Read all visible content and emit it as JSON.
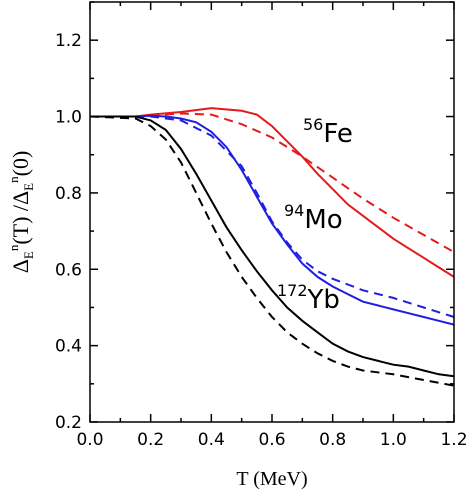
{
  "chart_data": {
    "type": "line",
    "title": "",
    "xlabel": "T  (MeV)",
    "ylabel": {
      "delta": "Δ",
      "sub": "E",
      "sup": "n",
      "num_arg": "(T) /",
      "den_arg": "(0)"
    },
    "xlim": [
      0.0,
      1.2
    ],
    "ylim": [
      0.2,
      1.3
    ],
    "x_ticks": [
      "0.0",
      "0.2",
      "0.4",
      "0.6",
      "0.8",
      "1.0",
      "1.2"
    ],
    "y_ticks": [
      "0.2",
      "0.4",
      "0.6",
      "0.8",
      "1.0",
      "1.2"
    ],
    "grid": false,
    "legend": "none",
    "labels": [
      {
        "mass": "56",
        "element": "Fe"
      },
      {
        "mass": "94",
        "element": "Mo"
      },
      {
        "mass": "172",
        "element": "Yb"
      }
    ],
    "series": [
      {
        "color": "#e41a1c",
        "style": "solid",
        "points": [
          [
            0.0,
            1.0
          ],
          [
            0.15,
            1.0
          ],
          [
            0.2,
            1.005
          ],
          [
            0.3,
            1.012
          ],
          [
            0.4,
            1.022
          ],
          [
            0.5,
            1.015
          ],
          [
            0.55,
            1.005
          ],
          [
            0.6,
            0.975
          ],
          [
            0.65,
            0.935
          ],
          [
            0.7,
            0.895
          ],
          [
            0.75,
            0.85
          ],
          [
            0.8,
            0.81
          ],
          [
            0.85,
            0.77
          ],
          [
            0.9,
            0.74
          ],
          [
            0.95,
            0.71
          ],
          [
            1.0,
            0.68
          ],
          [
            1.05,
            0.655
          ],
          [
            1.1,
            0.63
          ],
          [
            1.15,
            0.605
          ],
          [
            1.2,
            0.58
          ]
        ]
      },
      {
        "color": "#e41a1c",
        "style": "dashed",
        "points": [
          [
            0.0,
            1.0
          ],
          [
            0.15,
            1.0
          ],
          [
            0.2,
            1.003
          ],
          [
            0.3,
            1.008
          ],
          [
            0.4,
            1.005
          ],
          [
            0.5,
            0.98
          ],
          [
            0.6,
            0.945
          ],
          [
            0.7,
            0.895
          ],
          [
            0.8,
            0.84
          ],
          [
            0.9,
            0.785
          ],
          [
            1.0,
            0.735
          ],
          [
            1.1,
            0.69
          ],
          [
            1.2,
            0.645
          ]
        ]
      },
      {
        "color": "#1f1fe0",
        "style": "solid",
        "points": [
          [
            0.0,
            1.0
          ],
          [
            0.15,
            1.0
          ],
          [
            0.2,
            1.002
          ],
          [
            0.25,
            1.0
          ],
          [
            0.3,
            0.995
          ],
          [
            0.35,
            0.985
          ],
          [
            0.4,
            0.96
          ],
          [
            0.45,
            0.92
          ],
          [
            0.5,
            0.86
          ],
          [
            0.55,
            0.79
          ],
          [
            0.6,
            0.72
          ],
          [
            0.65,
            0.665
          ],
          [
            0.7,
            0.615
          ],
          [
            0.75,
            0.58
          ],
          [
            0.8,
            0.555
          ],
          [
            0.85,
            0.535
          ],
          [
            0.9,
            0.515
          ],
          [
            0.95,
            0.505
          ],
          [
            1.0,
            0.495
          ],
          [
            1.05,
            0.485
          ],
          [
            1.1,
            0.475
          ],
          [
            1.15,
            0.465
          ],
          [
            1.2,
            0.455
          ]
        ]
      },
      {
        "color": "#1f1fe0",
        "style": "dashed",
        "points": [
          [
            0.0,
            1.0
          ],
          [
            0.15,
            1.0
          ],
          [
            0.2,
            1.0
          ],
          [
            0.3,
            0.99
          ],
          [
            0.4,
            0.95
          ],
          [
            0.5,
            0.87
          ],
          [
            0.55,
            0.8
          ],
          [
            0.6,
            0.725
          ],
          [
            0.65,
            0.67
          ],
          [
            0.7,
            0.625
          ],
          [
            0.75,
            0.595
          ],
          [
            0.8,
            0.575
          ],
          [
            0.85,
            0.56
          ],
          [
            0.9,
            0.545
          ],
          [
            1.0,
            0.525
          ],
          [
            1.1,
            0.5
          ],
          [
            1.2,
            0.475
          ]
        ]
      },
      {
        "color": "#000000",
        "style": "solid",
        "points": [
          [
            0.0,
            1.0
          ],
          [
            0.15,
            1.0
          ],
          [
            0.2,
            0.99
          ],
          [
            0.25,
            0.965
          ],
          [
            0.3,
            0.915
          ],
          [
            0.35,
            0.85
          ],
          [
            0.4,
            0.78
          ],
          [
            0.45,
            0.71
          ],
          [
            0.5,
            0.65
          ],
          [
            0.55,
            0.595
          ],
          [
            0.6,
            0.545
          ],
          [
            0.65,
            0.5
          ],
          [
            0.7,
            0.465
          ],
          [
            0.75,
            0.435
          ],
          [
            0.8,
            0.405
          ],
          [
            0.85,
            0.385
          ],
          [
            0.9,
            0.37
          ],
          [
            0.95,
            0.36
          ],
          [
            1.0,
            0.35
          ],
          [
            1.05,
            0.345
          ],
          [
            1.1,
            0.335
          ],
          [
            1.15,
            0.325
          ],
          [
            1.2,
            0.32
          ]
        ]
      },
      {
        "color": "#000000",
        "style": "dashed",
        "points": [
          [
            0.0,
            1.0
          ],
          [
            0.15,
            0.995
          ],
          [
            0.2,
            0.975
          ],
          [
            0.25,
            0.94
          ],
          [
            0.3,
            0.88
          ],
          [
            0.35,
            0.8
          ],
          [
            0.4,
            0.72
          ],
          [
            0.45,
            0.645
          ],
          [
            0.5,
            0.58
          ],
          [
            0.55,
            0.525
          ],
          [
            0.6,
            0.475
          ],
          [
            0.65,
            0.435
          ],
          [
            0.7,
            0.405
          ],
          [
            0.75,
            0.38
          ],
          [
            0.8,
            0.36
          ],
          [
            0.85,
            0.345
          ],
          [
            0.9,
            0.335
          ],
          [
            1.0,
            0.325
          ],
          [
            1.1,
            0.31
          ],
          [
            1.2,
            0.295
          ]
        ]
      }
    ]
  }
}
